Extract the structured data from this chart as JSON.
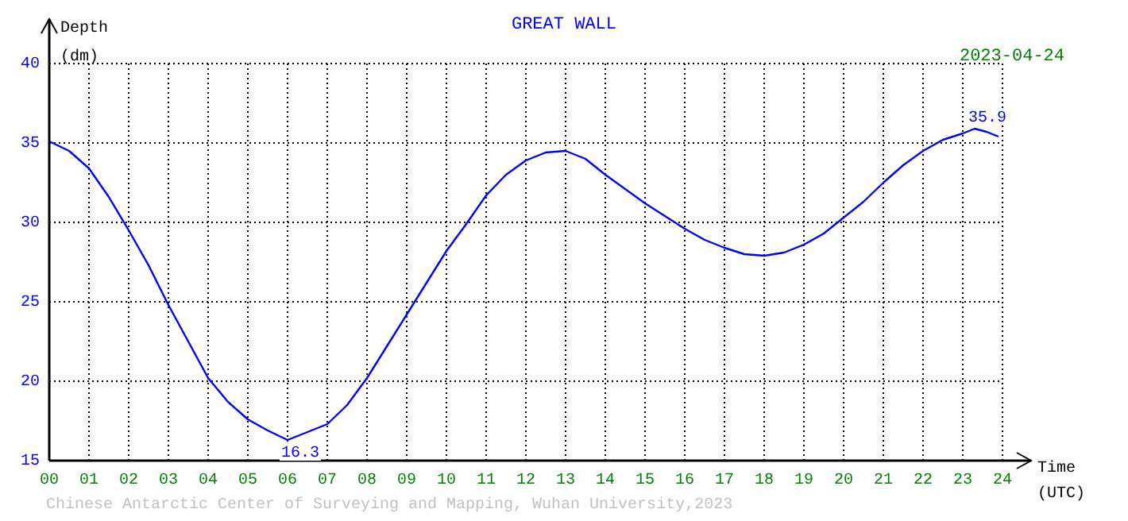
{
  "chart_data": {
    "type": "line",
    "title": "GREAT WALL",
    "subtitle": "2023-04-24",
    "xlabel": "Time (UTC)",
    "ylabel": "Depth (dm)",
    "x": [
      0,
      0.5,
      1,
      1.5,
      2,
      2.5,
      3,
      3.5,
      4,
      4.5,
      5,
      5.5,
      6,
      6.5,
      7,
      7.5,
      8,
      8.5,
      9,
      9.5,
      10,
      10.5,
      11,
      11.5,
      12,
      12.5,
      13,
      13.5,
      14,
      14.5,
      15,
      15.5,
      16,
      16.5,
      17,
      17.5,
      18,
      18.5,
      19,
      19.5,
      20,
      20.5,
      21,
      21.5,
      22,
      22.5,
      23,
      23.3,
      23.6,
      23.9
    ],
    "series": [
      {
        "color": "#0000ff",
        "values": [
          35.1,
          34.5,
          33.4,
          31.6,
          29.5,
          27.3,
          24.8,
          22.5,
          20.2,
          18.7,
          17.6,
          16.9,
          16.3,
          16.8,
          17.3,
          18.5,
          20.2,
          22.2,
          24.2,
          26.2,
          28.2,
          29.9,
          31.7,
          33.0,
          33.9,
          34.4,
          34.5,
          34.0,
          33.0,
          32.1,
          31.2,
          30.4,
          29.6,
          28.9,
          28.4,
          28.0,
          27.9,
          28.1,
          28.6,
          29.3,
          30.3,
          31.3,
          32.5,
          33.6,
          34.5,
          35.2,
          35.6,
          35.9,
          35.7,
          35.4
        ]
      }
    ],
    "xlim": [
      0,
      24
    ],
    "xticks": [
      {
        "value": 0,
        "label": "00"
      },
      {
        "value": 1,
        "label": "01"
      },
      {
        "value": 2,
        "label": "02"
      },
      {
        "value": 3,
        "label": "03"
      },
      {
        "value": 4,
        "label": "04"
      },
      {
        "value": 5,
        "label": "05"
      },
      {
        "value": 6,
        "label": "06"
      },
      {
        "value": 7,
        "label": "07"
      },
      {
        "value": 8,
        "label": "08"
      },
      {
        "value": 9,
        "label": "09"
      },
      10,
      11,
      12,
      13,
      14,
      15,
      16,
      17,
      18,
      19,
      20,
      21,
      22,
      23,
      24
    ],
    "ylim": [
      15,
      40
    ],
    "yticks": [
      15,
      20,
      25,
      30,
      35,
      40
    ],
    "annotations": [
      "Chinese Antarctic Center of Surveying and Mapping, Wuhan University,2023",
      {
        "text": "16.3",
        "x": 6,
        "y": 16.3
      },
      {
        "text": "35.9",
        "x": 23.3,
        "y": 35.9
      }
    ],
    "grid": true,
    "legend": false,
    "marker": "none",
    "line_style": "solid"
  }
}
